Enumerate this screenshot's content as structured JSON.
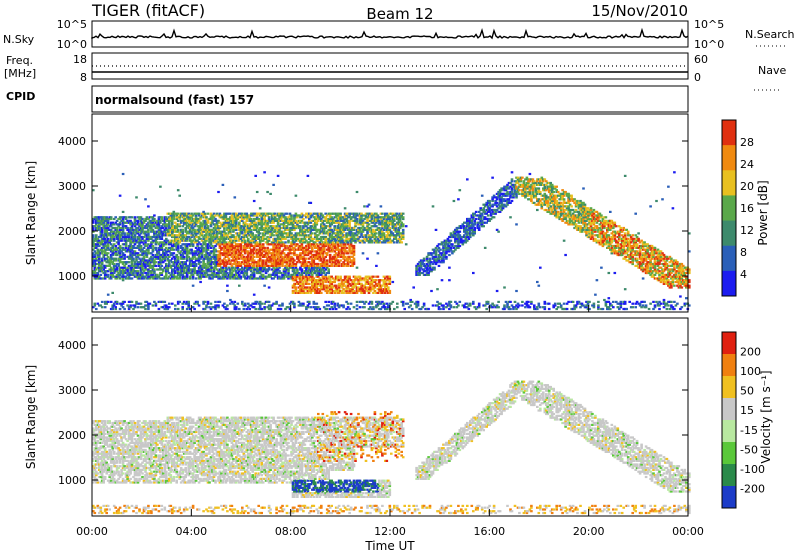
{
  "header": {
    "title": "TIGER (fitACF)",
    "beam": "Beam 12",
    "date": "15/Nov/2010"
  },
  "status_panels": {
    "nsky": {
      "label": "N.Sky",
      "tick_top": "10^5",
      "tick_bottom": "10^0",
      "right_label": "N.Search",
      "right_tick_top": "10^5",
      "right_tick_bottom": "10^0"
    },
    "freq": {
      "label_1": "Freq.",
      "label_2": "[MHz]",
      "tick_top": "18",
      "tick_bottom": "8",
      "right_label": "Nave",
      "right_tick_top": "60",
      "right_tick_bottom": "0"
    },
    "cpid": {
      "label": "CPID",
      "value": "normalsound (fast) 157"
    }
  },
  "chart_data": [
    {
      "type": "heatmap",
      "name": "power",
      "ylabel": "Slant Range [km]",
      "yticks": [
        "1000",
        "2000",
        "3000",
        "4000"
      ],
      "ylim": [
        200,
        4600
      ],
      "xticks": [
        "00:00",
        "04:00",
        "08:00",
        "12:00",
        "16:00",
        "20:00",
        "00:00"
      ],
      "xlim_hours": [
        0,
        24
      ],
      "colorbar": {
        "label": "Power [dB]",
        "ticks": [
          "4",
          "8",
          "12",
          "16",
          "20",
          "24",
          "28"
        ],
        "range": [
          0,
          30
        ],
        "colors": [
          "#1c1cf0",
          "#2a5fb8",
          "#3d8a6c",
          "#5aa84a",
          "#e8c020",
          "#f08a10",
          "#e03010"
        ]
      },
      "features": [
        {
          "desc": "broad band",
          "t0": 0.0,
          "t1": 9.5,
          "r0": 900,
          "r1": 2300
        },
        {
          "desc": "strong backscatter",
          "t0": 5.0,
          "t1": 10.5,
          "r0": 1200,
          "r1": 1700
        },
        {
          "desc": "near range echoes",
          "t0": 8.0,
          "t1": 12.0,
          "r0": 600,
          "r1": 1000
        },
        {
          "desc": "upper band",
          "t0": 3.0,
          "t1": 12.5,
          "r0": 1700,
          "r1": 2400
        },
        {
          "desc": "ascending arc",
          "t0": 13.0,
          "t1": 17.5,
          "r0": 1000,
          "r1": 3200
        },
        {
          "desc": "descending arc",
          "t0": 17.0,
          "t1": 24.0,
          "r0": 700,
          "r1": 3200
        }
      ]
    },
    {
      "type": "heatmap",
      "name": "velocity",
      "ylabel": "Slant Range [km]",
      "yticks": [
        "1000",
        "2000",
        "3000",
        "4000"
      ],
      "ylim": [
        200,
        4600
      ],
      "xticks": [
        "00:00",
        "04:00",
        "08:00",
        "12:00",
        "16:00",
        "20:00",
        "00:00"
      ],
      "xlabel": "Time UT",
      "colorbar": {
        "label": "Velocity [m s⁻¹]",
        "ticks": [
          "200",
          "100",
          "50",
          "15",
          "-15",
          "-50",
          "-100",
          "-200"
        ],
        "colors": [
          "#1c3cc8",
          "#2a8a4a",
          "#5ac83a",
          "#b8e8a0",
          "#c8c8c8",
          "#f0c020",
          "#f08010",
          "#e02010"
        ]
      },
      "features": [
        {
          "desc": "gray background scatter",
          "t0": 0.0,
          "t1": 24.0,
          "r0": 500,
          "r1": 2400
        },
        {
          "desc": "negative velocity (blue)",
          "t0": 8.0,
          "t1": 11.5,
          "r0": 700,
          "r1": 1000
        },
        {
          "desc": "positive velocity (red/orange)",
          "t0": 9.0,
          "t1": 12.5,
          "r0": 1400,
          "r1": 2500
        }
      ]
    }
  ]
}
